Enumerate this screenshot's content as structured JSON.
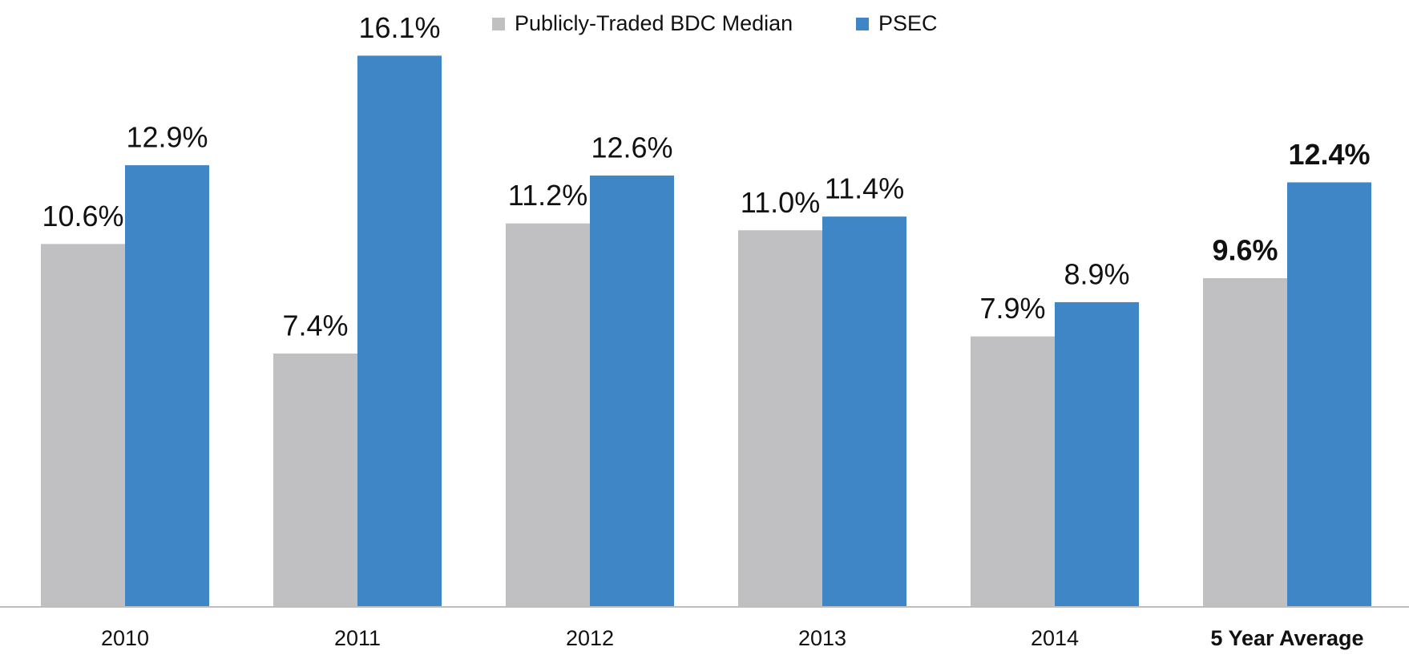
{
  "chart_data": {
    "type": "bar",
    "categories": [
      "2010",
      "2011",
      "2012",
      "2013",
      "2014",
      "5 Year Average"
    ],
    "series": [
      {
        "name": "Publicly-Traded BDC Median",
        "color": "#c0c0c2",
        "values": [
          10.6,
          7.4,
          11.2,
          11.0,
          7.9,
          9.6
        ],
        "value_labels": [
          "10.6%",
          "7.4%",
          "11.2%",
          "11.0%",
          "7.9%",
          "9.6%"
        ]
      },
      {
        "name": "PSEC",
        "color": "#3f86c6",
        "values": [
          12.9,
          16.1,
          12.6,
          11.4,
          8.9,
          12.4
        ],
        "value_labels": [
          "12.9%",
          "16.1%",
          "12.6%",
          "11.4%",
          "8.9%",
          "12.4%"
        ]
      }
    ],
    "ylim": [
      0,
      17
    ],
    "legend": "top"
  }
}
